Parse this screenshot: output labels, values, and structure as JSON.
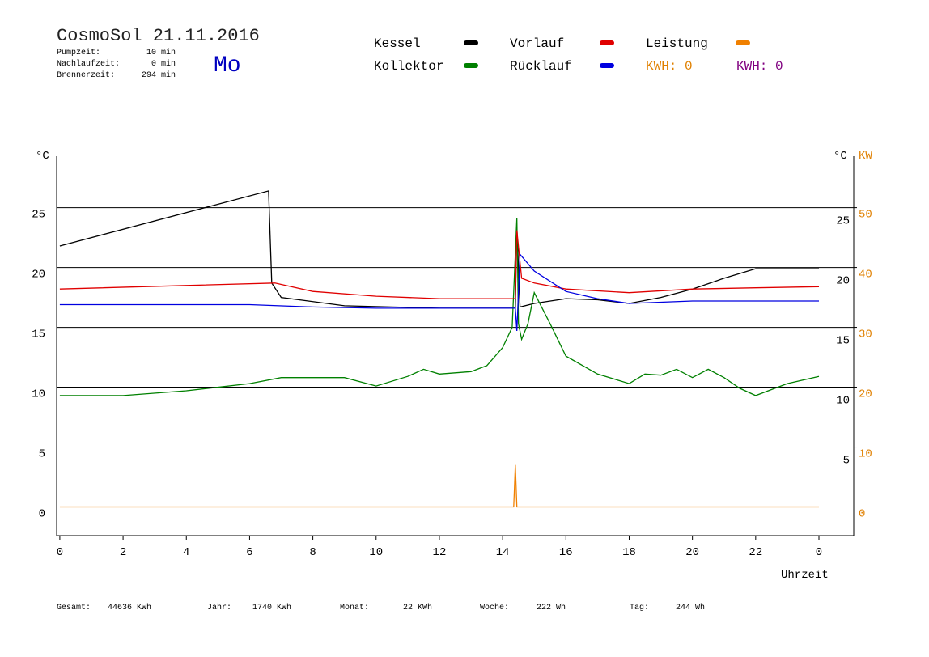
{
  "header": {
    "title": "CosmoSol 21.11.2016",
    "day": "Mo",
    "info": [
      {
        "label": "Pumpzeit:",
        "value": "10 min"
      },
      {
        "label": "Nachlaufzeit:",
        "value": "0 min"
      },
      {
        "label": "Brennerzeit:",
        "value": "294 min"
      }
    ],
    "kwh": [
      {
        "label": "KWH: 0",
        "color": "#e08000"
      },
      {
        "label": "KWH: 0",
        "color": "#800080"
      }
    ]
  },
  "footer": [
    {
      "label": "Gesamt:",
      "value": "44636 KWh"
    },
    {
      "label": "Jahr:",
      "value": "1740 KWh"
    },
    {
      "label": "Monat:",
      "value": "22 KWh"
    },
    {
      "label": "Woche:",
      "value": "222 Wh"
    },
    {
      "label": "Tag:",
      "value": "244 Wh"
    }
  ],
  "chart_data": {
    "type": "line",
    "y_label": "°C",
    "y2_label_c": "°C",
    "y2_label": "KW",
    "x_label": "Uhrzeit",
    "xlim": [
      -0.1,
      25.1
    ],
    "xticks": [
      0,
      2,
      4,
      6,
      8,
      10,
      12,
      14,
      16,
      18,
      20,
      22,
      {
        "value": 24,
        "label": "0"
      }
    ],
    "ylim": [
      -2.4,
      29.3
    ],
    "yticks": [
      0,
      5,
      10,
      15,
      20,
      25
    ],
    "y_right_ticks": [
      5,
      10,
      15,
      20,
      25
    ],
    "y2lim": [
      -4.8,
      58.6
    ],
    "y2ticks": [
      0,
      10,
      20,
      30,
      40,
      50
    ],
    "grid": true,
    "series": [
      {
        "name": "Kessel",
        "color": "#000000",
        "x": [
          0,
          6.6,
          6.7,
          7,
          9,
          12,
          14.4,
          14.45,
          14.55,
          15,
          16,
          17,
          18,
          19,
          20,
          21,
          22,
          23,
          24
        ],
        "values": [
          21.8,
          26.4,
          18.7,
          17.5,
          16.8,
          16.6,
          16.6,
          23.4,
          16.7,
          17.0,
          17.4,
          17.3,
          17.0,
          17.5,
          18.2,
          19.1,
          19.9,
          19.9,
          19.9
        ]
      },
      {
        "name": "Kollektor",
        "color": "#008000",
        "x": [
          0,
          2,
          4,
          6,
          7,
          9,
          10,
          11,
          11.5,
          12,
          13,
          13.5,
          14,
          14.3,
          14.45,
          14.5,
          14.6,
          14.8,
          15,
          15.5,
          16,
          17,
          18,
          18.5,
          19,
          19.5,
          20,
          20.5,
          21,
          21.5,
          22,
          23,
          24
        ],
        "values": [
          9.3,
          9.3,
          9.7,
          10.3,
          10.8,
          10.8,
          10.1,
          10.9,
          11.5,
          11.1,
          11.3,
          11.8,
          13.3,
          15.0,
          24.1,
          15.3,
          14.0,
          15.3,
          17.9,
          15.3,
          12.6,
          11.1,
          10.3,
          11.1,
          11.0,
          11.5,
          10.8,
          11.5,
          10.8,
          9.9,
          9.3,
          10.3,
          10.9
        ]
      },
      {
        "name": "Vorlauf",
        "color": "#e00000",
        "x": [
          0,
          4,
          6.8,
          8,
          10,
          12,
          14.4,
          14.45,
          14.6,
          15,
          16,
          18,
          20,
          22,
          24
        ],
        "values": [
          18.2,
          18.5,
          18.7,
          18.0,
          17.6,
          17.4,
          17.4,
          23.1,
          19.1,
          18.7,
          18.2,
          17.9,
          18.2,
          18.3,
          18.4
        ]
      },
      {
        "name": "Rücklauf",
        "color": "#0000e0",
        "x": [
          0,
          6,
          8,
          10,
          14.4,
          14.45,
          14.55,
          15,
          16,
          17,
          18,
          20,
          24
        ],
        "values": [
          16.9,
          16.9,
          16.7,
          16.6,
          16.6,
          14.7,
          21.1,
          19.7,
          18.0,
          17.4,
          17.0,
          17.2,
          17.2
        ]
      },
      {
        "name": "Leistung",
        "color": "#f08000",
        "axis": "y2",
        "x": [
          0,
          14.35,
          14.4,
          14.45,
          24
        ],
        "values": [
          0,
          0,
          7.0,
          0,
          0
        ]
      }
    ]
  }
}
